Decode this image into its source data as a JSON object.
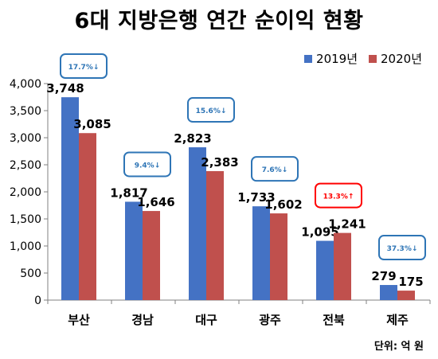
{
  "chart_data": {
    "type": "bar",
    "title": "6대 지방은행 연간 순이익 현황",
    "categories": [
      "부산",
      "경남",
      "대구",
      "광주",
      "전북",
      "제주"
    ],
    "series": [
      {
        "name": "2019년",
        "color": "#4472C4",
        "values": [
          3748,
          1817,
          2823,
          1733,
          1095,
          279
        ],
        "labels": [
          "3,748",
          "1,817",
          "2,823",
          "1,733",
          "1,095",
          "279"
        ]
      },
      {
        "name": "2020년",
        "color": "#C0504D",
        "values": [
          3085,
          1646,
          2383,
          1602,
          1241,
          175
        ],
        "labels": [
          "3,085",
          "1,646",
          "2,383",
          "1,602",
          "1,241",
          "175"
        ]
      }
    ],
    "ylim": [
      0,
      4000
    ],
    "yticks": [
      0,
      500,
      1000,
      1500,
      2000,
      2500,
      3000,
      3500,
      4000
    ],
    "ytick_labels": [
      "0",
      "500",
      "1,000",
      "1,500",
      "2,000",
      "2,500",
      "3,000",
      "3,500",
      "4,000"
    ],
    "annotations": [
      {
        "text": "17.7%↓",
        "color": "#2E75B6",
        "box_color": "#2E75B6"
      },
      {
        "text": "9.4%↓",
        "color": "#2E75B6",
        "box_color": "#2E75B6"
      },
      {
        "text": "15.6%↓",
        "color": "#2E75B6",
        "box_color": "#2E75B6"
      },
      {
        "text": "7.6%↓",
        "color": "#2E75B6",
        "box_color": "#2E75B6"
      },
      {
        "text": "13.3%↑",
        "color": "#FF0000",
        "box_color": "#FF0000"
      },
      {
        "text": "37.3%↓",
        "color": "#2E75B6",
        "box_color": "#2E75B6"
      }
    ],
    "legend_position": "top-right",
    "grid": false,
    "unit_note": "단위: 억 원"
  }
}
